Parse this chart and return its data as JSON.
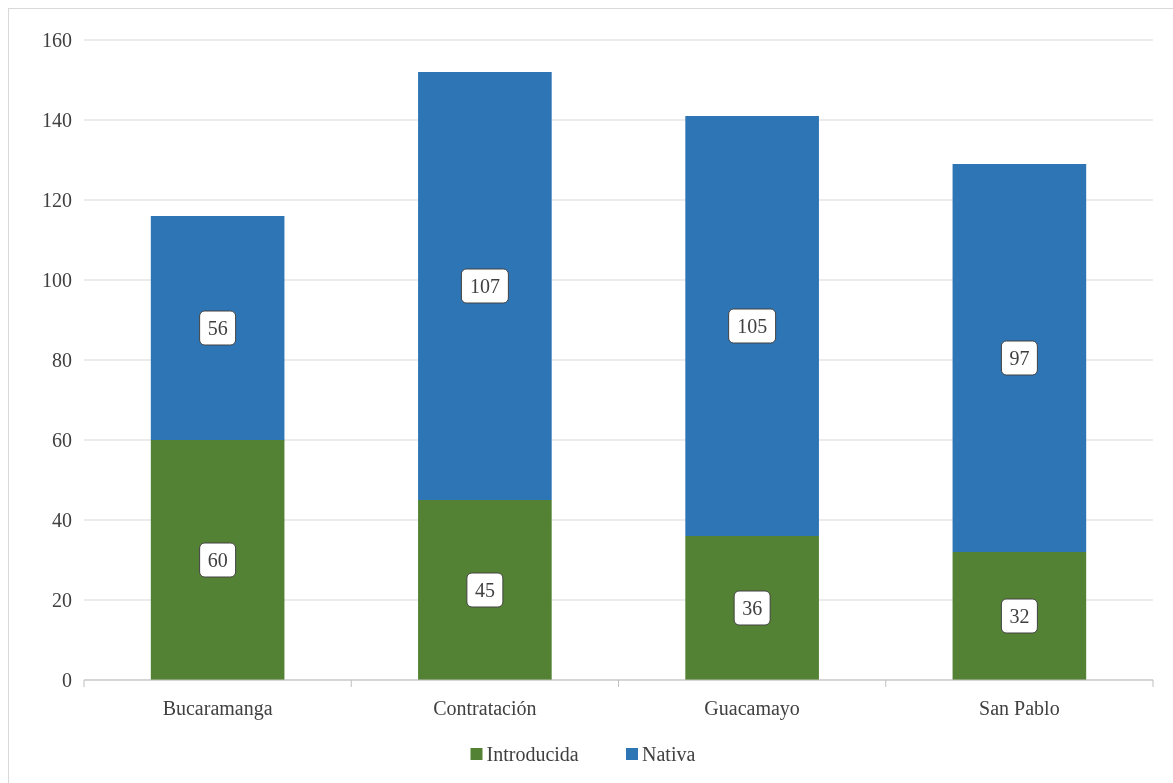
{
  "chart_data": {
    "type": "bar",
    "stacked": true,
    "categories": [
      "Bucaramanga",
      "Contratación",
      "Guacamayo",
      "San Pablo"
    ],
    "series": [
      {
        "name": "Introducida",
        "color": "#548235",
        "values": [
          60,
          45,
          36,
          32
        ]
      },
      {
        "name": "Nativa",
        "color": "#2e75b6",
        "values": [
          56,
          107,
          105,
          97
        ]
      }
    ],
    "ylim": [
      0,
      160
    ],
    "yticks": [
      0,
      20,
      40,
      60,
      80,
      100,
      120,
      140,
      160
    ],
    "grid": "y",
    "legend": "bottom",
    "data_labels": true
  }
}
